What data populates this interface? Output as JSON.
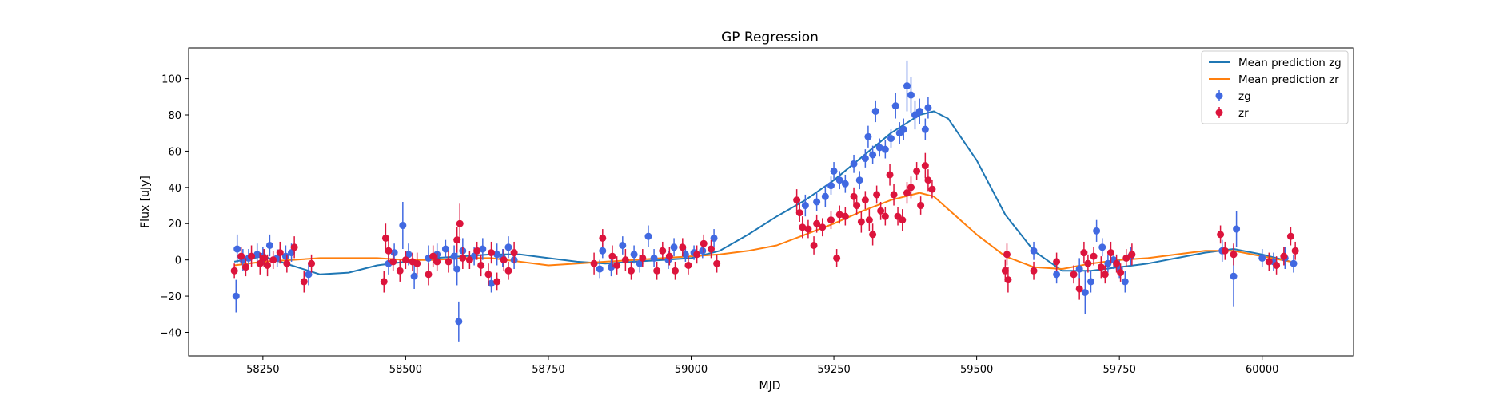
{
  "chart_data": {
    "type": "scatter",
    "title": "GP Regression",
    "xlabel": "MJD",
    "ylabel": "Flux [uJy]",
    "xlim": [
      58120,
      60160
    ],
    "ylim": [
      -53,
      117
    ],
    "xticks": [
      58250,
      58500,
      58750,
      59000,
      59250,
      59500,
      59750,
      60000
    ],
    "yticks": [
      -40,
      -20,
      0,
      20,
      40,
      60,
      80,
      100
    ],
    "grid": false,
    "legend_position": "top-right",
    "series": [
      {
        "name": "Mean prediction zg",
        "kind": "line",
        "color": "#1f77b4",
        "x": [
          58200,
          58250,
          58300,
          58350,
          58400,
          58450,
          58500,
          58550,
          58600,
          58650,
          58700,
          58750,
          58800,
          58850,
          58900,
          58950,
          59000,
          59050,
          59100,
          59150,
          59200,
          59250,
          59300,
          59350,
          59400,
          59425,
          59450,
          59500,
          59550,
          59600,
          59650,
          59700,
          59750,
          59800,
          59850,
          59900,
          59950,
          60000,
          60050
        ],
        "y": [
          -1,
          2,
          -3,
          -8,
          -7,
          -3,
          -1,
          1,
          2,
          3,
          3,
          1,
          -1,
          -2,
          -1,
          0,
          1,
          5,
          14,
          24,
          33,
          44,
          57,
          70,
          80,
          82,
          78,
          55,
          25,
          5,
          -6,
          -6,
          -4,
          -2,
          1,
          4,
          6,
          3,
          -1
        ]
      },
      {
        "name": "Mean prediction zr",
        "kind": "line",
        "color": "#ff7f0e",
        "x": [
          58200,
          58250,
          58300,
          58350,
          58400,
          58450,
          58500,
          58550,
          58600,
          58650,
          58700,
          58750,
          58800,
          58850,
          58900,
          58950,
          59000,
          59050,
          59100,
          59150,
          59200,
          59250,
          59300,
          59350,
          59400,
          59425,
          59450,
          59500,
          59550,
          59600,
          59650,
          59700,
          59750,
          59800,
          59850,
          59900,
          59950,
          60000,
          60050
        ],
        "y": [
          -3,
          -1,
          0,
          1,
          1,
          1,
          0,
          0,
          1,
          1,
          -1,
          -3,
          -2,
          -1,
          0,
          1,
          2,
          3,
          5,
          8,
          14,
          20,
          27,
          33,
          37,
          35,
          28,
          14,
          2,
          -4,
          -5,
          -2,
          0,
          1,
          3,
          5,
          5,
          2,
          -1
        ]
      },
      {
        "name": "zg",
        "kind": "errorbar",
        "color": "#4169e1",
        "points": [
          [
            58203,
            -20,
            9
          ],
          [
            58205,
            6,
            8
          ],
          [
            58215,
            0,
            6
          ],
          [
            58225,
            1,
            5
          ],
          [
            58240,
            3,
            6
          ],
          [
            58250,
            2,
            5
          ],
          [
            58262,
            8,
            6
          ],
          [
            58275,
            1,
            5
          ],
          [
            58290,
            2,
            6
          ],
          [
            58300,
            4,
            5
          ],
          [
            58330,
            -8,
            6
          ],
          [
            58470,
            -2,
            6
          ],
          [
            58480,
            4,
            5
          ],
          [
            58495,
            19,
            13
          ],
          [
            58505,
            3,
            6
          ],
          [
            58515,
            -9,
            7
          ],
          [
            58540,
            1,
            7
          ],
          [
            58555,
            3,
            6
          ],
          [
            58570,
            6,
            5
          ],
          [
            58585,
            2,
            6
          ],
          [
            58590,
            -5,
            9
          ],
          [
            58593,
            -34,
            11
          ],
          [
            58600,
            5,
            7
          ],
          [
            58620,
            2,
            5
          ],
          [
            58635,
            6,
            6
          ],
          [
            58650,
            -13,
            5
          ],
          [
            58660,
            3,
            6
          ],
          [
            58670,
            1,
            5
          ],
          [
            58680,
            7,
            6
          ],
          [
            58690,
            0,
            5
          ],
          [
            58840,
            -5,
            5
          ],
          [
            58845,
            5,
            4
          ],
          [
            58860,
            -4,
            5
          ],
          [
            58880,
            8,
            5
          ],
          [
            58900,
            3,
            5
          ],
          [
            58910,
            -2,
            5
          ],
          [
            58925,
            13,
            6
          ],
          [
            58935,
            1,
            5
          ],
          [
            58960,
            0,
            5
          ],
          [
            58970,
            7,
            5
          ],
          [
            58990,
            3,
            4
          ],
          [
            59005,
            4,
            4
          ],
          [
            59020,
            5,
            4
          ],
          [
            59040,
            12,
            5
          ],
          [
            59200,
            30,
            6
          ],
          [
            59220,
            32,
            5
          ],
          [
            59235,
            35,
            6
          ],
          [
            59245,
            41,
            5
          ],
          [
            59250,
            49,
            5
          ],
          [
            59260,
            44,
            5
          ],
          [
            59270,
            42,
            5
          ],
          [
            59285,
            53,
            5
          ],
          [
            59295,
            44,
            5
          ],
          [
            59305,
            56,
            5
          ],
          [
            59310,
            68,
            6
          ],
          [
            59318,
            58,
            5
          ],
          [
            59323,
            82,
            6
          ],
          [
            59330,
            62,
            5
          ],
          [
            59340,
            61,
            5
          ],
          [
            59350,
            67,
            5
          ],
          [
            59358,
            85,
            7
          ],
          [
            59365,
            70,
            6
          ],
          [
            59372,
            72,
            6
          ],
          [
            59378,
            96,
            14
          ],
          [
            59385,
            91,
            10
          ],
          [
            59392,
            80,
            8
          ],
          [
            59400,
            82,
            7
          ],
          [
            59410,
            72,
            6
          ],
          [
            59415,
            84,
            6
          ],
          [
            59600,
            5,
            5
          ],
          [
            59640,
            -8,
            5
          ],
          [
            59680,
            -5,
            6
          ],
          [
            59690,
            -18,
            12
          ],
          [
            59700,
            -12,
            6
          ],
          [
            59710,
            16,
            6
          ],
          [
            59720,
            7,
            5
          ],
          [
            59730,
            -2,
            5
          ],
          [
            59740,
            0,
            5
          ],
          [
            59750,
            -5,
            5
          ],
          [
            59760,
            -12,
            6
          ],
          [
            59770,
            2,
            5
          ],
          [
            59930,
            5,
            6
          ],
          [
            59950,
            -9,
            17
          ],
          [
            59955,
            17,
            10
          ],
          [
            60000,
            1,
            5
          ],
          [
            60020,
            -1,
            5
          ],
          [
            60040,
            1,
            6
          ],
          [
            60055,
            -2,
            5
          ]
        ]
      },
      {
        "name": "zr",
        "kind": "errorbar",
        "color": "#dc143c",
        "points": [
          [
            58200,
            -6,
            4
          ],
          [
            58212,
            2,
            5
          ],
          [
            58220,
            -4,
            5
          ],
          [
            58230,
            2,
            6
          ],
          [
            58245,
            -2,
            6
          ],
          [
            58252,
            1,
            5
          ],
          [
            58258,
            -3,
            6
          ],
          [
            58268,
            0,
            5
          ],
          [
            58280,
            4,
            6
          ],
          [
            58292,
            -2,
            5
          ],
          [
            58305,
            7,
            6
          ],
          [
            58322,
            -12,
            6
          ],
          [
            58335,
            -2,
            5
          ],
          [
            58462,
            -12,
            6
          ],
          [
            58465,
            12,
            8
          ],
          [
            58470,
            5,
            6
          ],
          [
            58478,
            -1,
            5
          ],
          [
            58490,
            -6,
            6
          ],
          [
            58500,
            0,
            5
          ],
          [
            58512,
            -1,
            5
          ],
          [
            58520,
            -2,
            6
          ],
          [
            58540,
            -8,
            6
          ],
          [
            58548,
            2,
            6
          ],
          [
            58555,
            -1,
            5
          ],
          [
            58575,
            -1,
            6
          ],
          [
            58590,
            11,
            7
          ],
          [
            58595,
            20,
            11
          ],
          [
            58600,
            1,
            6
          ],
          [
            58612,
            0,
            5
          ],
          [
            58625,
            5,
            5
          ],
          [
            58632,
            -3,
            6
          ],
          [
            58645,
            -8,
            6
          ],
          [
            58650,
            4,
            6
          ],
          [
            58660,
            -12,
            5
          ],
          [
            58672,
            0,
            6
          ],
          [
            58680,
            -6,
            5
          ],
          [
            58690,
            4,
            6
          ],
          [
            58830,
            -2,
            6
          ],
          [
            58845,
            12,
            5
          ],
          [
            58862,
            2,
            6
          ],
          [
            58870,
            -3,
            5
          ],
          [
            58885,
            0,
            6
          ],
          [
            58895,
            -6,
            5
          ],
          [
            58915,
            1,
            5
          ],
          [
            58940,
            -6,
            5
          ],
          [
            58950,
            5,
            5
          ],
          [
            58962,
            2,
            5
          ],
          [
            58972,
            -6,
            5
          ],
          [
            58985,
            7,
            5
          ],
          [
            58995,
            -3,
            5
          ],
          [
            59010,
            3,
            5
          ],
          [
            59022,
            9,
            5
          ],
          [
            59035,
            6,
            5
          ],
          [
            59045,
            -2,
            5
          ],
          [
            59185,
            33,
            6
          ],
          [
            59190,
            26,
            5
          ],
          [
            59195,
            18,
            6
          ],
          [
            59205,
            17,
            5
          ],
          [
            59215,
            8,
            5
          ],
          [
            59220,
            20,
            5
          ],
          [
            59230,
            18,
            5
          ],
          [
            59245,
            22,
            5
          ],
          [
            59255,
            1,
            5
          ],
          [
            59260,
            25,
            5
          ],
          [
            59270,
            24,
            5
          ],
          [
            59285,
            35,
            5
          ],
          [
            59290,
            30,
            5
          ],
          [
            59298,
            21,
            6
          ],
          [
            59305,
            33,
            5
          ],
          [
            59312,
            22,
            6
          ],
          [
            59318,
            14,
            6
          ],
          [
            59325,
            36,
            5
          ],
          [
            59332,
            27,
            5
          ],
          [
            59340,
            24,
            5
          ],
          [
            59348,
            47,
            6
          ],
          [
            59355,
            36,
            6
          ],
          [
            59362,
            24,
            5
          ],
          [
            59370,
            22,
            6
          ],
          [
            59378,
            37,
            6
          ],
          [
            59385,
            40,
            6
          ],
          [
            59395,
            49,
            5
          ],
          [
            59402,
            30,
            5
          ],
          [
            59410,
            52,
            7
          ],
          [
            59415,
            44,
            6
          ],
          [
            59422,
            39,
            5
          ],
          [
            59550,
            -6,
            6
          ],
          [
            59553,
            3,
            6
          ],
          [
            59555,
            -11,
            7
          ],
          [
            59600,
            -6,
            5
          ],
          [
            59640,
            -1,
            5
          ],
          [
            59670,
            -8,
            5
          ],
          [
            59680,
            -16,
            6
          ],
          [
            59688,
            4,
            6
          ],
          [
            59695,
            -2,
            5
          ],
          [
            59705,
            2,
            5
          ],
          [
            59718,
            -4,
            6
          ],
          [
            59725,
            -8,
            5
          ],
          [
            59735,
            4,
            6
          ],
          [
            59745,
            -2,
            5
          ],
          [
            59752,
            -7,
            5
          ],
          [
            59762,
            1,
            5
          ],
          [
            59772,
            3,
            6
          ],
          [
            59927,
            14,
            5
          ],
          [
            59935,
            5,
            5
          ],
          [
            59950,
            3,
            6
          ],
          [
            60012,
            -1,
            5
          ],
          [
            60025,
            -3,
            5
          ],
          [
            60038,
            2,
            5
          ],
          [
            60050,
            13,
            5
          ],
          [
            60058,
            5,
            5
          ]
        ]
      }
    ]
  }
}
